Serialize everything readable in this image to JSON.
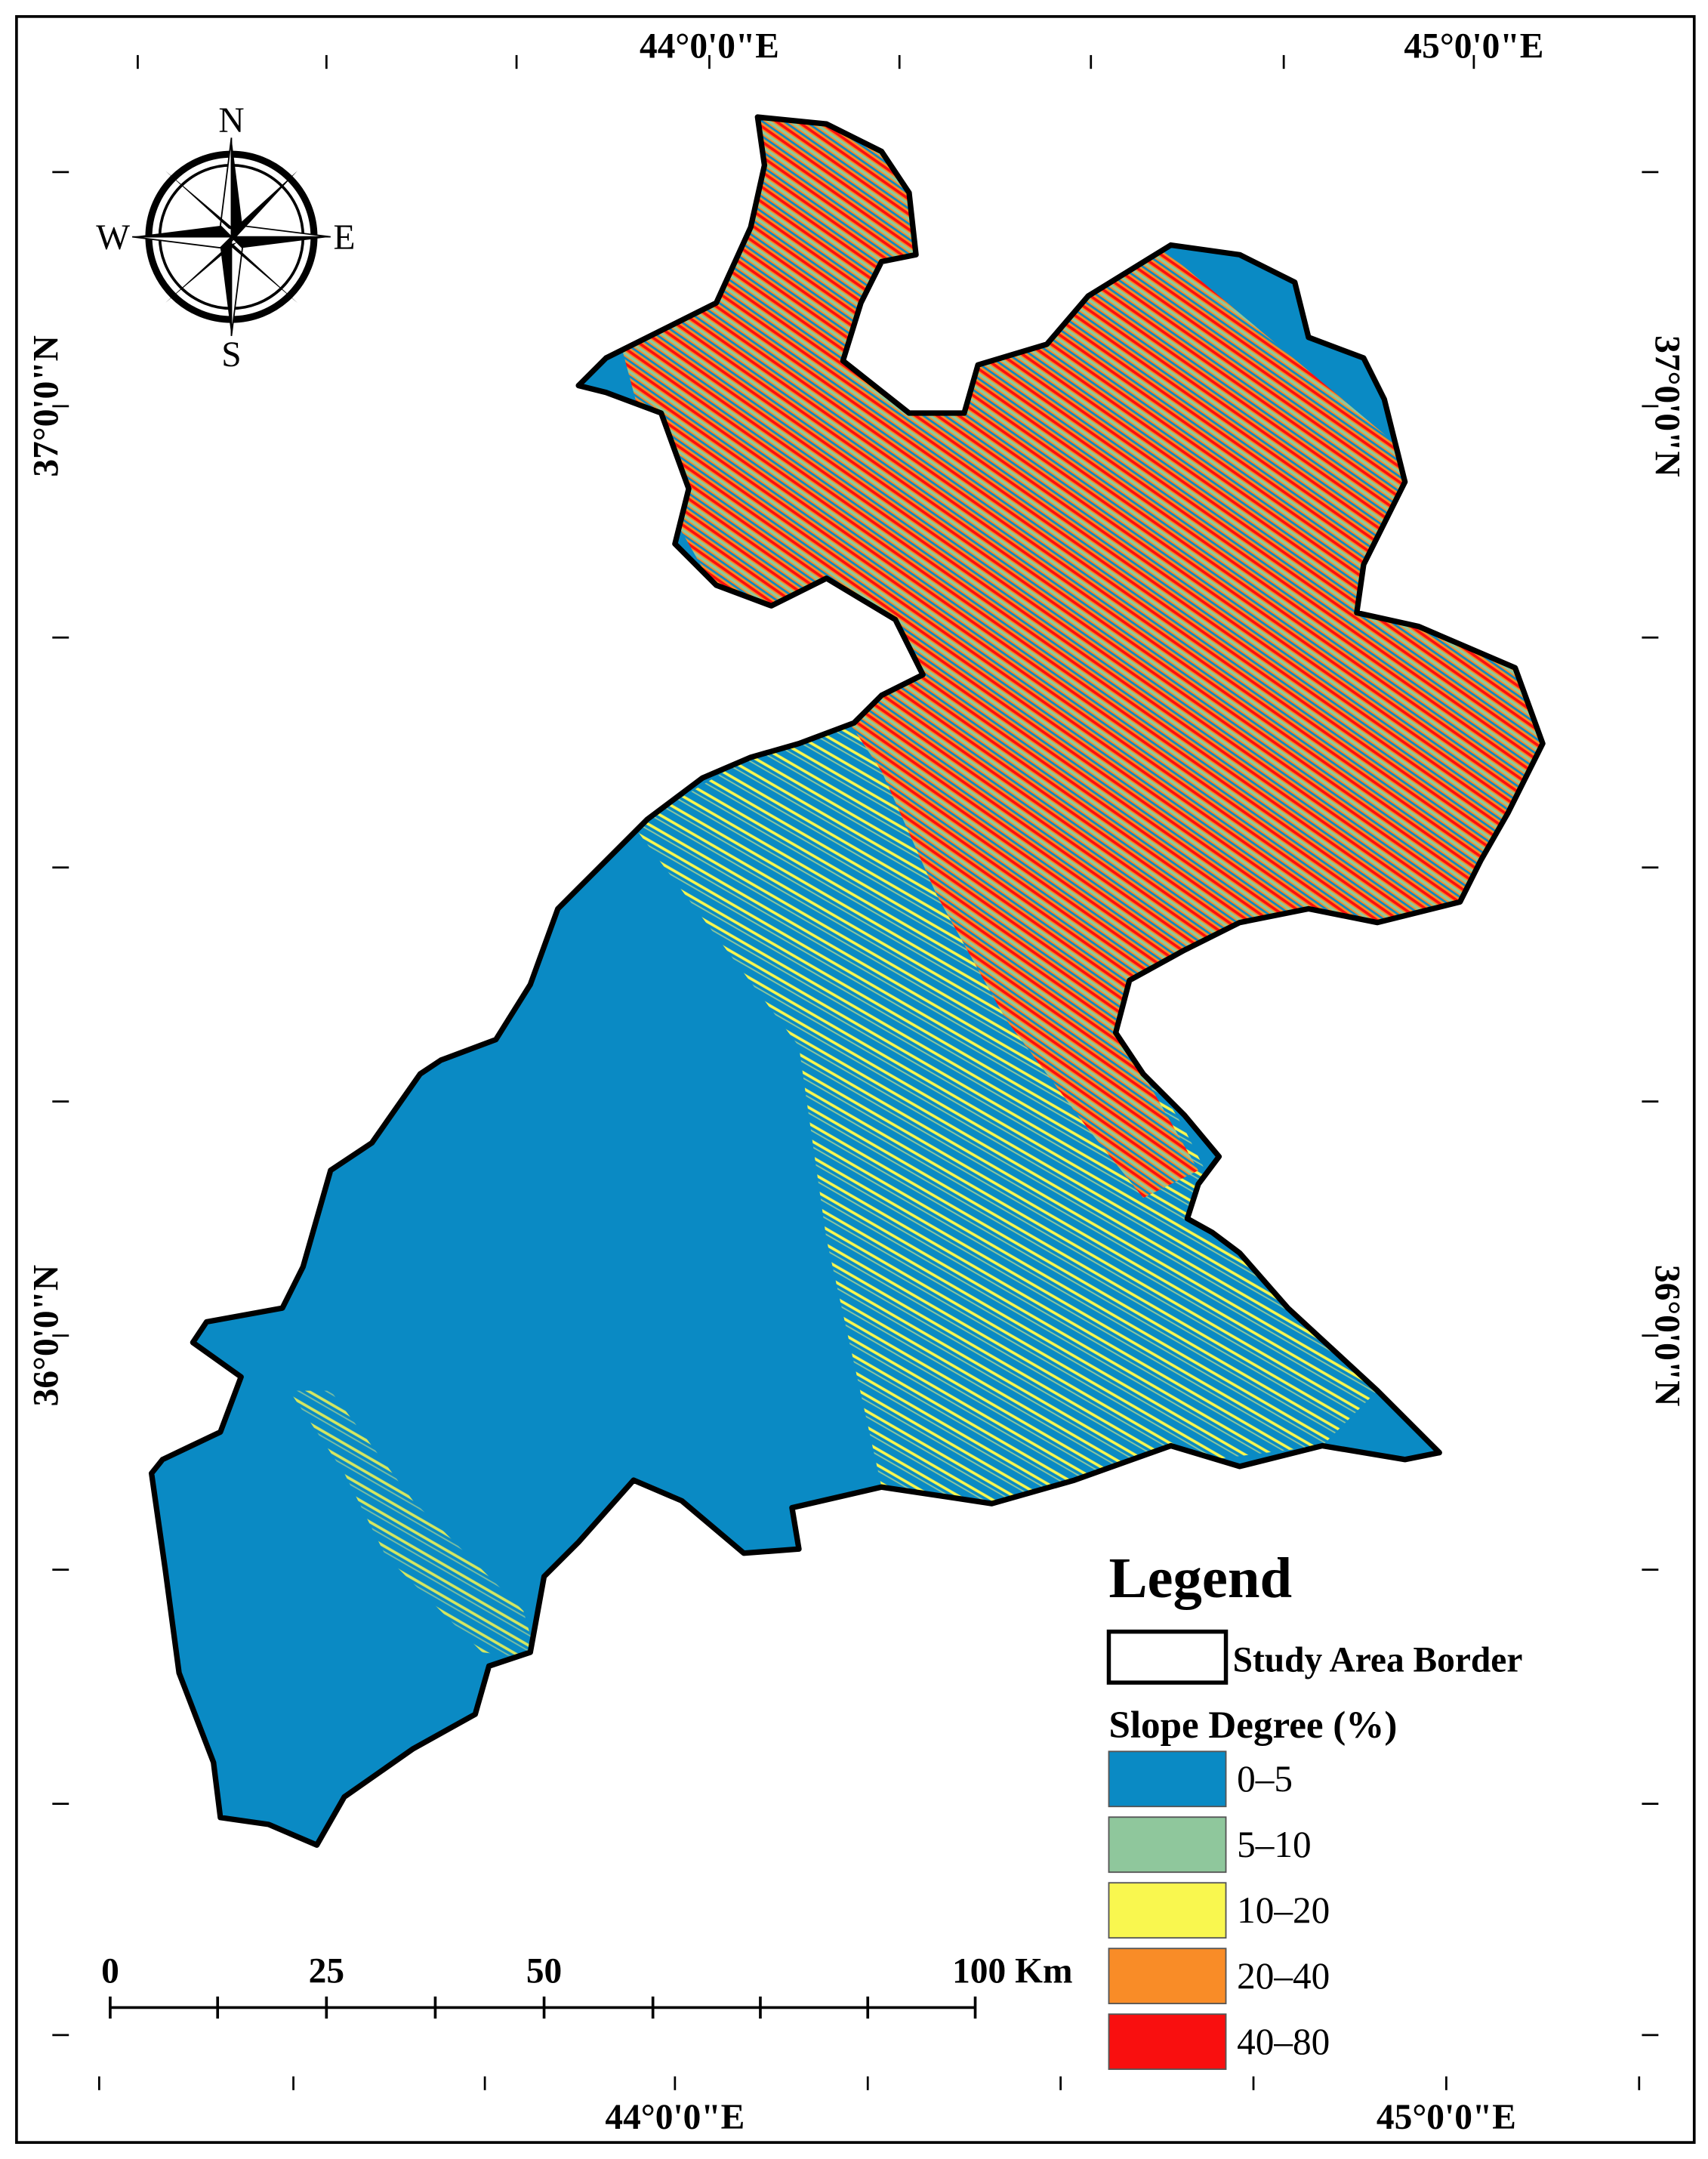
{
  "graticule": {
    "top": [
      "44°0'0\"E",
      "45°0'0\"E"
    ],
    "bottom": [
      "44°0'0\"E",
      "45°0'0\"E"
    ],
    "left": [
      "37°0'0\"N",
      "36°0'0\"N"
    ],
    "right": [
      "37°0'0\"N",
      "36°0'0\"N"
    ]
  },
  "compass": {
    "n": "N",
    "e": "E",
    "s": "S",
    "w": "W"
  },
  "legend": {
    "title": "Legend",
    "border_label": "Study Area Border",
    "slope_title": "Slope Degree (%)",
    "classes": [
      {
        "label": "0–5",
        "color": "#0a8ac4"
      },
      {
        "label": "5–10",
        "color": "#8fc79c"
      },
      {
        "label": "10–20",
        "color": "#f9f74f"
      },
      {
        "label": "20–40",
        "color": "#f98c27"
      },
      {
        "label": "40–80",
        "color": "#f90f0f"
      }
    ]
  },
  "scale_bar": {
    "labels": [
      "0",
      "25",
      "50",
      "100 Km"
    ]
  }
}
